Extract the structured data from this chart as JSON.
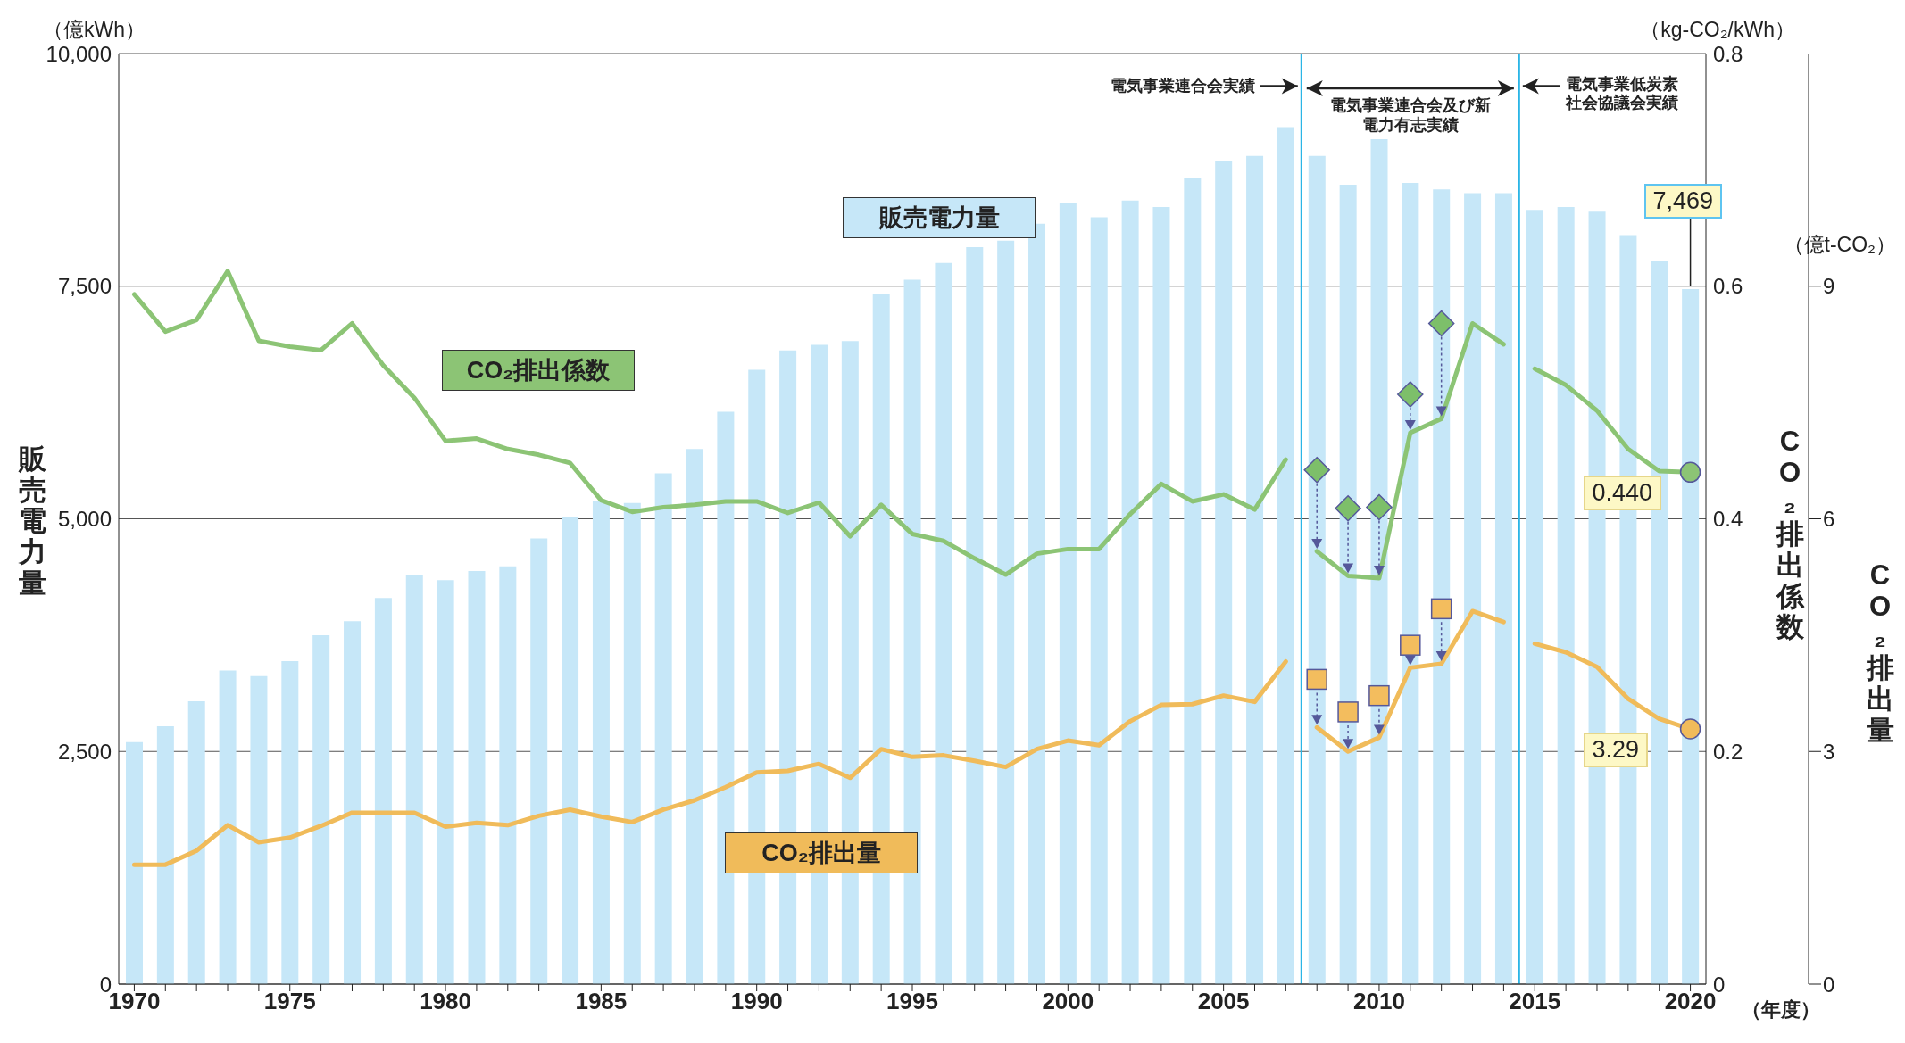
{
  "chart_data": {
    "type": "bar",
    "x": [
      1970,
      1971,
      1972,
      1973,
      1974,
      1975,
      1976,
      1977,
      1978,
      1979,
      1980,
      1981,
      1982,
      1983,
      1984,
      1985,
      1986,
      1987,
      1988,
      1989,
      1990,
      1991,
      1992,
      1993,
      1994,
      1995,
      1996,
      1997,
      1998,
      1999,
      2000,
      2001,
      2002,
      2003,
      2004,
      2005,
      2006,
      2007,
      2008,
      2009,
      2010,
      2011,
      2012,
      2013,
      2014,
      2015,
      2016,
      2017,
      2018,
      2019,
      2020
    ],
    "xlim": [
      1969.5,
      2020.5
    ],
    "xticks": [
      1970,
      {
        "value": 1971,
        "label": null
      },
      {
        "value": 1972,
        "label": null
      },
      {
        "value": 1973,
        "label": null
      },
      {
        "value": 1974,
        "label": null
      },
      1975,
      {
        "value": 1976,
        "label": null
      },
      {
        "value": 1977,
        "label": null
      },
      {
        "value": 1978,
        "label": null
      },
      {
        "value": 1979,
        "label": null
      },
      1980,
      {
        "value": 1981,
        "label": null
      },
      {
        "value": 1982,
        "label": null
      },
      {
        "value": 1983,
        "label": null
      },
      {
        "value": 1984,
        "label": null
      },
      1985,
      {
        "value": 1986,
        "label": null
      },
      {
        "value": 1987,
        "label": null
      },
      {
        "value": 1988,
        "label": null
      },
      {
        "value": 1989,
        "label": null
      },
      1990,
      {
        "value": 1991,
        "label": null
      },
      {
        "value": 1992,
        "label": null
      },
      {
        "value": 1993,
        "label": null
      },
      {
        "value": 1994,
        "label": null
      },
      1995,
      {
        "value": 1996,
        "label": null
      },
      {
        "value": 1997,
        "label": null
      },
      {
        "value": 1998,
        "label": null
      },
      {
        "value": 1999,
        "label": null
      },
      2000,
      {
        "value": 2001,
        "label": null
      },
      {
        "value": 2002,
        "label": null
      },
      {
        "value": 2003,
        "label": null
      },
      {
        "value": 2004,
        "label": null
      },
      2005,
      {
        "value": 2006,
        "label": null
      },
      {
        "value": 2007,
        "label": null
      },
      {
        "value": 2008,
        "label": null
      },
      {
        "value": 2009,
        "label": null
      },
      2010,
      {
        "value": 2011,
        "label": null
      },
      {
        "value": 2012,
        "label": null
      },
      {
        "value": 2013,
        "label": null
      },
      {
        "value": 2014,
        "label": null
      },
      2015,
      {
        "value": 2016,
        "label": null
      },
      {
        "value": 2017,
        "label": null
      },
      {
        "value": 2018,
        "label": null
      },
      {
        "value": 2019,
        "label": null
      },
      2020
    ],
    "ylim": [
      0,
      10000
    ],
    "yticks": [
      0,
      {
        "value": 2500,
        "label": "2,500"
      },
      {
        "value": 5000,
        "label": "5,000"
      },
      {
        "value": 7500,
        "label": "7,500"
      },
      {
        "value": 10000,
        "label": "10,000"
      }
    ],
    "y2lim": [
      0,
      0.8
    ],
    "y2ticks": [
      0,
      0.2,
      0.4,
      0.6,
      0.8
    ],
    "y3lim": [
      0,
      12
    ],
    "y3ticks": [
      0,
      3,
      6,
      9
    ],
    "xlabel": "（年度）",
    "ylabel": "販売電力量",
    "y2label": "CO₂排出係数",
    "y3label": "CO₂排出量",
    "grid": "y",
    "ref_lines": [
      {
        "axis": "x",
        "value": 2007.5,
        "color": "#2bb5e6"
      },
      {
        "axis": "x",
        "value": 2014.5,
        "color": "#2bb5e6"
      }
    ],
    "annotations": [
      "（億kWh）",
      "（kg-CO₂/kWh）",
      "（億t-CO₂）",
      {
        "text": "電気事業連合会実績",
        "x": 2007.5,
        "y": 9650
      },
      "電気事業連合会及び新電力有志実績",
      {
        "text": "電気事業低炭素社会協議会実績",
        "x": 2014.5,
        "y": 9650
      }
    ],
    "series": [
      {
        "name": "販売電力量",
        "color": "#c6e7f8",
        "values": [
          2600,
          2770,
          3040,
          3370,
          3310,
          3470,
          3750,
          3900,
          4150,
          4390,
          4340,
          4440,
          4490,
          4790,
          5020,
          5190,
          5170,
          5490,
          5750,
          6150,
          6600,
          6810,
          6870,
          6910,
          7420,
          7570,
          7750,
          7920,
          7990,
          8170,
          8390,
          8240,
          8420,
          8350,
          8660,
          8840,
          8900,
          9210,
          8900,
          8590,
          9080,
          8610,
          8540,
          8500,
          8500,
          8320,
          8350,
          8300,
          8050,
          7770,
          7469
        ],
        "value_labels": [
          null,
          null,
          null,
          null,
          null,
          null,
          null,
          null,
          null,
          null,
          null,
          null,
          null,
          null,
          null,
          null,
          null,
          null,
          null,
          null,
          null,
          null,
          null,
          null,
          null,
          null,
          null,
          null,
          null,
          null,
          null,
          null,
          null,
          null,
          null,
          null,
          null,
          null,
          null,
          null,
          null,
          null,
          null,
          null,
          null,
          null,
          null,
          null,
          null,
          null,
          "7,469"
        ]
      },
      {
        "name": "CO₂排出係数",
        "type": "line",
        "axis": "y2",
        "color": "#8cc475",
        "x": [
          1970,
          1971,
          1972,
          1973,
          1974,
          1975,
          1976,
          1977,
          1978,
          1979,
          1980,
          1981,
          1982,
          1983,
          1984,
          1985,
          1986,
          1987,
          1988,
          1989,
          1990,
          1991,
          1992,
          1993,
          1994,
          1995,
          1996,
          1997,
          1998,
          1999,
          2000,
          2001,
          2002,
          2003,
          2004,
          2005,
          2006,
          2007
        ],
        "values": [
          0.593,
          0.561,
          0.571,
          0.613,
          0.553,
          0.548,
          0.545,
          0.568,
          0.532,
          0.504,
          0.467,
          0.469,
          0.46,
          0.455,
          0.448,
          0.416,
          0.406,
          0.41,
          0.412,
          0.415,
          0.415,
          0.405,
          0.414,
          0.385,
          0.412,
          0.387,
          0.381,
          0.366,
          0.352,
          0.37,
          0.374,
          0.374,
          0.404,
          0.43,
          0.415,
          0.421,
          0.408,
          0.451
        ]
      },
      {
        "type": "line",
        "axis": "y2",
        "color": "#8cc475",
        "x": [
          2008,
          2009,
          2010,
          2011,
          2012,
          2013,
          2014
        ],
        "values": [
          0.372,
          0.351,
          0.349,
          0.474,
          0.486,
          0.568,
          0.55
        ]
      },
      {
        "type": "line",
        "axis": "y2",
        "color": "#8cc475",
        "x": [
          2015,
          2016,
          2017,
          2018,
          2019,
          2020
        ],
        "values": [
          0.529,
          0.515,
          0.493,
          0.46,
          0.441,
          0.44
        ],
        "value_labels": [
          null,
          null,
          null,
          null,
          null,
          "0.440"
        ]
      },
      {
        "name": "CO₂排出量",
        "type": "line",
        "axis": "y3",
        "color": "#f0bb5a",
        "x": [
          1970,
          1971,
          1972,
          1973,
          1974,
          1975,
          1976,
          1977,
          1978,
          1979,
          1980,
          1981,
          1982,
          1983,
          1984,
          1985,
          1986,
          1987,
          1988,
          1989,
          1990,
          1991,
          1992,
          1993,
          1994,
          1995,
          1996,
          1997,
          1998,
          1999,
          2000,
          2001,
          2002,
          2003,
          2004,
          2005,
          2006,
          2007
        ],
        "values": [
          1.54,
          1.54,
          1.72,
          2.05,
          1.83,
          1.89,
          2.04,
          2.21,
          2.21,
          2.21,
          2.03,
          2.08,
          2.05,
          2.17,
          2.25,
          2.16,
          2.09,
          2.25,
          2.37,
          2.54,
          2.73,
          2.75,
          2.84,
          2.66,
          3.03,
          2.93,
          2.95,
          2.88,
          2.8,
          3.03,
          3.14,
          3.08,
          3.39,
          3.6,
          3.61,
          3.72,
          3.64,
          4.16
        ]
      },
      {
        "type": "line",
        "axis": "y3",
        "color": "#f0bb5a",
        "x": [
          2008,
          2009,
          2010,
          2011,
          2012,
          2013,
          2014
        ],
        "values": [
          3.31,
          3.0,
          3.18,
          4.08,
          4.13,
          4.81,
          4.67
        ]
      },
      {
        "type": "line",
        "axis": "y3",
        "color": "#f0bb5a",
        "x": [
          2015,
          2016,
          2017,
          2018,
          2019,
          2020
        ],
        "values": [
          4.39,
          4.28,
          4.09,
          3.68,
          3.42,
          3.29
        ],
        "value_labels": [
          null,
          null,
          null,
          null,
          null,
          "3.29"
        ]
      },
      {
        "type": "scatter",
        "axis": "y2",
        "color": "#7dbf6a",
        "marker": "diamond",
        "x": [
          2008,
          2009,
          2010,
          2011,
          2012
        ],
        "values": [
          0.442,
          0.409,
          0.41,
          0.507,
          0.568
        ]
      },
      {
        "type": "scatter",
        "axis": "y3",
        "color": "#f3bd5e",
        "marker": "square",
        "x": [
          2008,
          2009,
          2010,
          2011,
          2012
        ],
        "values": [
          3.93,
          3.51,
          3.72,
          4.37,
          4.84
        ]
      }
    ]
  }
}
